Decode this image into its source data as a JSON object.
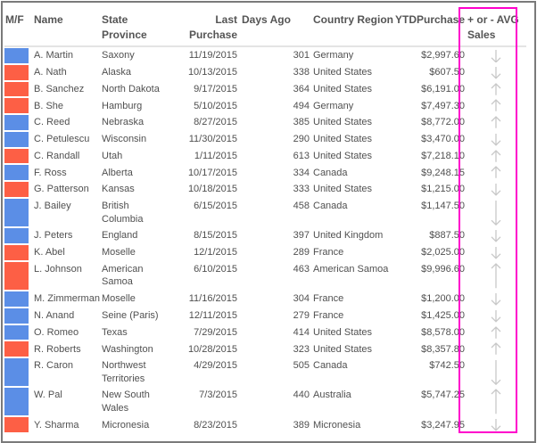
{
  "colors": {
    "male": "#5b8ee6",
    "female": "#fd5f45",
    "arrow": "#c8c8c8",
    "highlight": "#ff00cc"
  },
  "columns": [
    "M/F",
    "Name",
    "State Province",
    "Last Purchase",
    "Days Ago",
    "Country Region",
    "YTDPurchase",
    "+ or - AVG Sales"
  ],
  "rows": [
    {
      "gender": "M",
      "name": "A. Martin",
      "state": "Saxony",
      "last": "11/19/2015",
      "days": "301",
      "country": "Germany",
      "ytd": "$2,997.60",
      "trend": "down"
    },
    {
      "gender": "F",
      "name": "A. Nath",
      "state": "Alaska",
      "last": "10/13/2015",
      "days": "338",
      "country": "United States",
      "ytd": "$607.50",
      "trend": "down"
    },
    {
      "gender": "F",
      "name": "B. Sanchez",
      "state": "North Dakota",
      "last": "9/17/2015",
      "days": "364",
      "country": "United States",
      "ytd": "$6,191.00",
      "trend": "up"
    },
    {
      "gender": "F",
      "name": "B. She",
      "state": "Hamburg",
      "last": "5/10/2015",
      "days": "494",
      "country": "Germany",
      "ytd": "$7,497.30",
      "trend": "up"
    },
    {
      "gender": "M",
      "name": "C. Reed",
      "state": "Nebraska",
      "last": "8/27/2015",
      "days": "385",
      "country": "United States",
      "ytd": "$8,772.00",
      "trend": "up"
    },
    {
      "gender": "M",
      "name": "C. Petulescu",
      "state": "Wisconsin",
      "last": "11/30/2015",
      "days": "290",
      "country": "United States",
      "ytd": "$3,470.00",
      "trend": "down"
    },
    {
      "gender": "F",
      "name": "C. Randall",
      "state": "Utah",
      "last": "1/11/2015",
      "days": "613",
      "country": "United States",
      "ytd": "$7,218.10",
      "trend": "up"
    },
    {
      "gender": "M",
      "name": "F. Ross",
      "state": "Alberta",
      "last": "10/17/2015",
      "days": "334",
      "country": "Canada",
      "ytd": "$9,248.15",
      "trend": "up"
    },
    {
      "gender": "F",
      "name": "G. Patterson",
      "state": "Kansas",
      "last": "10/18/2015",
      "days": "333",
      "country": "United States",
      "ytd": "$1,215.00",
      "trend": "down"
    },
    {
      "gender": "M",
      "name": "J. Bailey",
      "state": "British Columbia",
      "last": "6/15/2015",
      "days": "458",
      "country": "Canada",
      "ytd": "$1,147.50",
      "trend": "down"
    },
    {
      "gender": "M",
      "name": "J. Peters",
      "state": "England",
      "last": "8/15/2015",
      "days": "397",
      "country": "United Kingdom",
      "ytd": "$887.50",
      "trend": "down"
    },
    {
      "gender": "F",
      "name": "K. Abel",
      "state": "Moselle",
      "last": "12/1/2015",
      "days": "289",
      "country": "France",
      "ytd": "$2,025.00",
      "trend": "down"
    },
    {
      "gender": "F",
      "name": "L. Johnson",
      "state": "American Samoa",
      "last": "6/10/2015",
      "days": "463",
      "country": "American Samoa",
      "ytd": "$9,996.60",
      "trend": "up"
    },
    {
      "gender": "M",
      "name": "M. Zimmerman",
      "state": "Moselle",
      "last": "11/16/2015",
      "days": "304",
      "country": "France",
      "ytd": "$1,200.00",
      "trend": "down"
    },
    {
      "gender": "M",
      "name": "N. Anand",
      "state": "Seine (Paris)",
      "last": "12/11/2015",
      "days": "279",
      "country": "France",
      "ytd": "$1,425.00",
      "trend": "down"
    },
    {
      "gender": "M",
      "name": "O. Romeo",
      "state": "Texas",
      "last": "7/29/2015",
      "days": "414",
      "country": "United States",
      "ytd": "$8,578.00",
      "trend": "up"
    },
    {
      "gender": "F",
      "name": "R. Roberts",
      "state": "Washington",
      "last": "10/28/2015",
      "days": "323",
      "country": "United States",
      "ytd": "$8,357.80",
      "trend": "up"
    },
    {
      "gender": "M",
      "name": "R. Caron",
      "state": "Northwest Territories",
      "last": "4/29/2015",
      "days": "505",
      "country": "Canada",
      "ytd": "$742.50",
      "trend": "down"
    },
    {
      "gender": "M",
      "name": "W. Pal",
      "state": "New South Wales",
      "last": "7/3/2015",
      "days": "440",
      "country": "Australia",
      "ytd": "$5,747.25",
      "trend": "up"
    },
    {
      "gender": "F",
      "name": "Y. Sharma",
      "state": "Micronesia",
      "last": "8/23/2015",
      "days": "389",
      "country": "Micronesia",
      "ytd": "$3,247.95",
      "trend": "down"
    }
  ]
}
